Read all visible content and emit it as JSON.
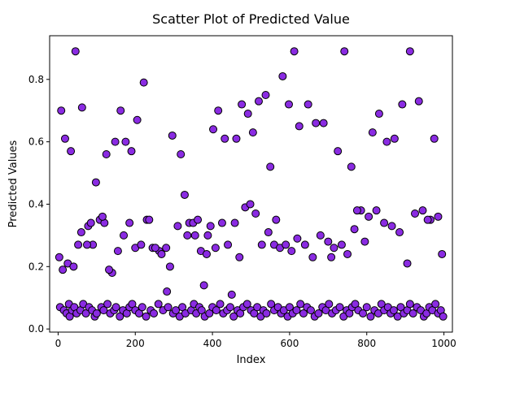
{
  "chart_data": {
    "type": "scatter",
    "title": "Scatter Plot of Predicted Value",
    "xlabel": "Index",
    "ylabel": "Predicted Values",
    "xlim": [
      -22,
      1022
    ],
    "ylim": [
      -0.01,
      0.94
    ],
    "xticks": [
      0,
      200,
      400,
      600,
      800,
      1000
    ],
    "xtick_labels": [
      "0",
      "200",
      "400",
      "600",
      "800",
      "1000"
    ],
    "yticks": [
      0.0,
      0.2,
      0.4,
      0.6,
      0.8
    ],
    "ytick_labels": [
      "0.0",
      "0.2",
      "0.4",
      "0.6",
      "0.8"
    ],
    "grid": false,
    "marker_color": "#8a2be2",
    "marker_edge_color": "#000000",
    "series": [
      {
        "x": [
          5,
          15,
          22,
          28,
          30,
          36,
          42,
          48,
          58,
          65,
          72,
          80,
          88,
          95,
          100,
          112,
          118,
          128,
          135,
          145,
          150,
          160,
          168,
          178,
          185,
          192,
          200,
          210,
          218,
          228,
          240,
          248,
          260,
          272,
          285,
          298,
          305,
          315,
          322,
          330,
          345,
          352,
          358,
          366,
          372,
          380,
          392,
          400,
          410,
          420,
          428,
          438,
          446,
          455,
          465,
          472,
          480,
          490,
          500,
          508,
          516,
          525,
          532,
          540,
          552,
          560,
          570,
          578,
          585,
          595,
          600,
          608,
          618,
          628,
          636,
          645,
          655,
          665,
          675,
          685,
          694,
          702,
          710,
          720,
          730,
          740,
          748,
          755,
          762,
          770,
          778,
          790,
          800,
          810,
          820,
          830,
          838,
          845,
          855,
          862,
          870,
          880,
          888,
          896,
          905,
          912,
          920,
          930,
          940,
          948,
          955,
          962,
          970,
          978,
          985,
          992,
          998,
          3,
          12,
          25,
          40,
          52,
          60,
          78,
          90,
          108,
          120,
          140,
          155,
          170,
          185,
          200,
          215,
          230,
          245,
          262,
          280,
          290,
          310,
          328,
          340,
          355,
          370,
          385,
          395,
          408,
          425,
          440,
          458,
          470,
          485,
          498,
          512,
          528,
          545,
          560,
          575,
          590,
          605,
          620,
          640,
          660,
          680,
          700,
          715,
          735,
          750,
          768,
          785,
          805,
          825,
          845,
          865,
          885,
          905,
          925,
          945,
          965,
          985,
          8,
          18,
          33,
          45,
          62,
          75,
          85,
          98,
          115,
          125,
          132,
          148,
          162,
          175,
          190,
          205,
          222,
          236,
          252,
          268,
          282,
          296,
          318,
          335,
          350,
          362,
          378,
          388,
          402,
          415,
          432,
          450,
          462,
          476,
          492,
          505,
          520,
          538,
          550,
          565,
          582,
          598,
          612,
          625,
          648,
          668,
          688,
          708,
          725,
          742,
          760,
          775,
          795,
          815,
          832,
          852,
          872,
          892,
          912,
          935,
          958,
          975,
          995
        ],
        "y": [
          0.07,
          0.06,
          0.05,
          0.08,
          0.04,
          0.06,
          0.07,
          0.05,
          0.06,
          0.08,
          0.05,
          0.07,
          0.06,
          0.04,
          0.05,
          0.07,
          0.06,
          0.08,
          0.05,
          0.06,
          0.07,
          0.04,
          0.06,
          0.05,
          0.07,
          0.08,
          0.06,
          0.05,
          0.07,
          0.04,
          0.06,
          0.05,
          0.08,
          0.06,
          0.07,
          0.05,
          0.06,
          0.04,
          0.07,
          0.05,
          0.06,
          0.08,
          0.05,
          0.07,
          0.06,
          0.04,
          0.05,
          0.07,
          0.06,
          0.08,
          0.05,
          0.06,
          0.07,
          0.04,
          0.06,
          0.05,
          0.07,
          0.08,
          0.06,
          0.05,
          0.07,
          0.04,
          0.06,
          0.05,
          0.08,
          0.06,
          0.07,
          0.05,
          0.06,
          0.04,
          0.07,
          0.05,
          0.06,
          0.08,
          0.05,
          0.07,
          0.06,
          0.04,
          0.05,
          0.07,
          0.06,
          0.08,
          0.05,
          0.06,
          0.07,
          0.04,
          0.06,
          0.05,
          0.07,
          0.08,
          0.06,
          0.05,
          0.07,
          0.04,
          0.06,
          0.05,
          0.08,
          0.06,
          0.07,
          0.05,
          0.06,
          0.04,
          0.07,
          0.05,
          0.06,
          0.08,
          0.05,
          0.07,
          0.06,
          0.04,
          0.05,
          0.07,
          0.06,
          0.08,
          0.05,
          0.06,
          0.04,
          0.23,
          0.19,
          0.21,
          0.2,
          0.27,
          0.31,
          0.33,
          0.27,
          0.35,
          0.34,
          0.18,
          0.25,
          0.3,
          0.34,
          0.26,
          0.27,
          0.35,
          0.26,
          0.25,
          0.26,
          0.2,
          0.33,
          0.43,
          0.34,
          0.3,
          0.25,
          0.24,
          0.33,
          0.26,
          0.34,
          0.27,
          0.34,
          0.23,
          0.39,
          0.4,
          0.37,
          0.27,
          0.31,
          0.27,
          0.26,
          0.27,
          0.25,
          0.29,
          0.27,
          0.23,
          0.3,
          0.28,
          0.26,
          0.27,
          0.24,
          0.32,
          0.38,
          0.36,
          0.38,
          0.34,
          0.33,
          0.31,
          0.21,
          0.37,
          0.38,
          0.35,
          0.36,
          0.7,
          0.61,
          0.57,
          0.89,
          0.71,
          0.27,
          0.34,
          0.47,
          0.36,
          0.56,
          0.19,
          0.6,
          0.7,
          0.6,
          0.57,
          0.67,
          0.79,
          0.35,
          0.26,
          0.24,
          0.12,
          0.62,
          0.56,
          0.3,
          0.34,
          0.35,
          0.14,
          0.3,
          0.64,
          0.7,
          0.61,
          0.11,
          0.61,
          0.72,
          0.69,
          0.63,
          0.73,
          0.75,
          0.52,
          0.35,
          0.81,
          0.72,
          0.89,
          0.65,
          0.72,
          0.66,
          0.66,
          0.23,
          0.57,
          0.89,
          0.52,
          0.38,
          0.28,
          0.63,
          0.69,
          0.6,
          0.61,
          0.72,
          0.89,
          0.73,
          0.35,
          0.61,
          0.24
        ]
      }
    ]
  }
}
